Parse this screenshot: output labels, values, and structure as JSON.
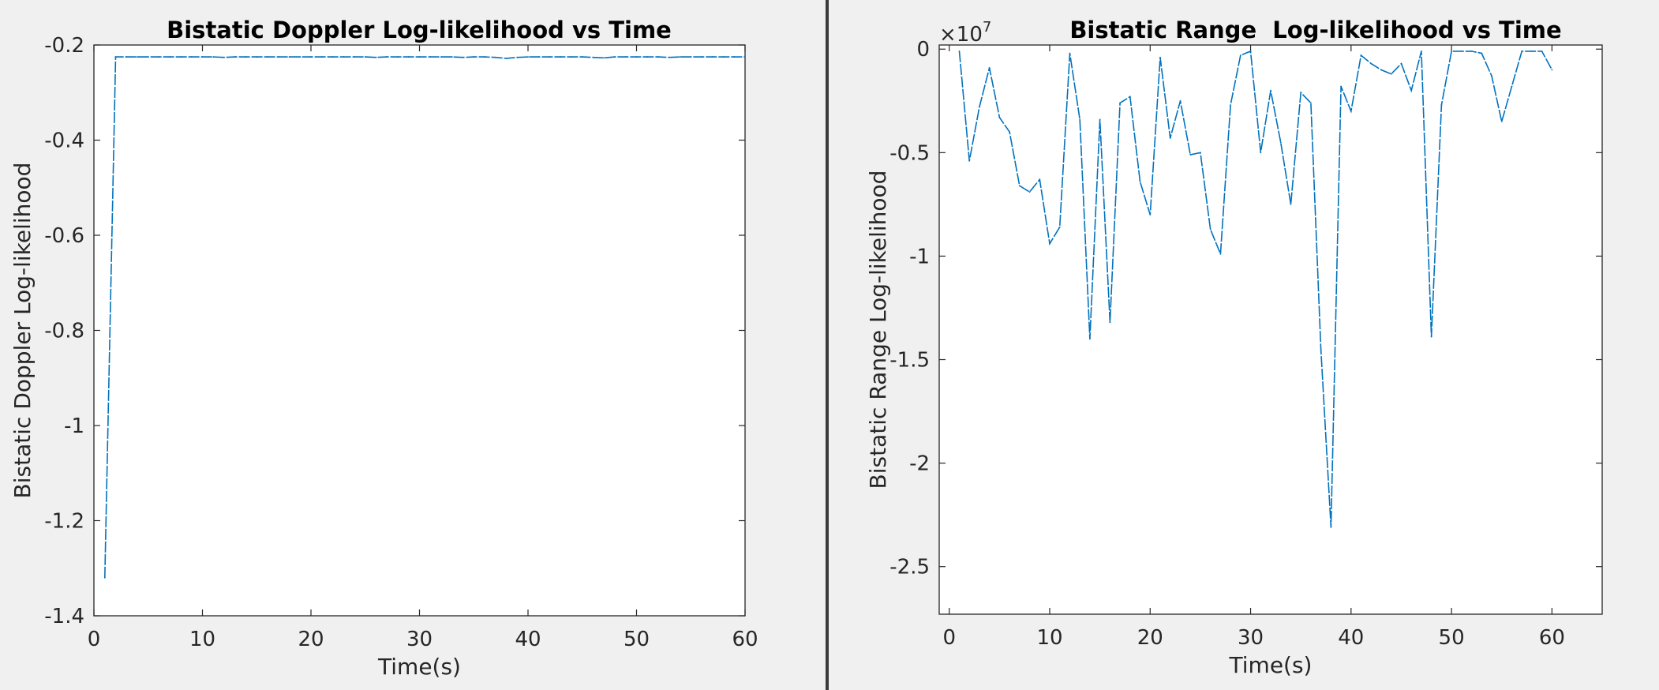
{
  "chart_data": [
    {
      "type": "line",
      "title": "Bistatic Doppler Log-likelihood vs Time",
      "xlabel": "Time(s)",
      "ylabel": "Bistatic Doppler Log-likelihood",
      "xlim": [
        0,
        60
      ],
      "ylim": [
        -1.4,
        -0.2
      ],
      "xticks": [
        0,
        10,
        20,
        30,
        40,
        50,
        60
      ],
      "xtick_labels": [
        "0",
        "10",
        "20",
        "30",
        "40",
        "50",
        "60"
      ],
      "yticks": [
        -1.4,
        -1.2,
        -1.0,
        -0.8,
        -0.6,
        -0.4,
        -0.2
      ],
      "ytick_labels": [
        "-1.4",
        "-1.2",
        "-1",
        "-0.8",
        "-0.6",
        "-0.4",
        "-0.2"
      ],
      "color": "#0072bd",
      "series": [
        {
          "x": [
            1,
            2,
            3,
            4,
            5,
            6,
            7,
            8,
            9,
            10,
            11,
            12,
            13,
            14,
            15,
            16,
            17,
            18,
            19,
            20,
            21,
            22,
            23,
            24,
            25,
            26,
            27,
            28,
            29,
            30,
            31,
            32,
            33,
            34,
            35,
            36,
            37,
            38,
            39,
            40,
            41,
            42,
            43,
            44,
            45,
            46,
            47,
            48,
            49,
            50,
            51,
            52,
            53,
            54,
            55,
            56,
            57,
            58,
            59,
            60
          ],
          "values": [
            -1.32,
            -0.225,
            -0.225,
            -0.225,
            -0.225,
            -0.225,
            -0.225,
            -0.225,
            -0.225,
            -0.225,
            -0.225,
            -0.226,
            -0.225,
            -0.225,
            -0.225,
            -0.225,
            -0.225,
            -0.225,
            -0.225,
            -0.225,
            -0.225,
            -0.225,
            -0.225,
            -0.225,
            -0.225,
            -0.226,
            -0.225,
            -0.225,
            -0.225,
            -0.225,
            -0.225,
            -0.225,
            -0.225,
            -0.226,
            -0.225,
            -0.225,
            -0.226,
            -0.228,
            -0.226,
            -0.225,
            -0.225,
            -0.225,
            -0.225,
            -0.225,
            -0.225,
            -0.226,
            -0.227,
            -0.225,
            -0.225,
            -0.225,
            -0.225,
            -0.225,
            -0.226,
            -0.225,
            -0.225,
            -0.225,
            -0.225,
            -0.225,
            -0.225,
            -0.225
          ]
        }
      ]
    },
    {
      "type": "line",
      "title": "Bistatic Range  Log-likelihood vs Time",
      "xlabel": "Time(s)",
      "ylabel": "Bistatic Range Log-likelihood",
      "y_exponent": "10",
      "y_exponent_power": "7",
      "y_exponent_prefix": "×",
      "xlim": [
        -1,
        65
      ],
      "ylim": [
        -2.73,
        0.02
      ],
      "xticks": [
        0,
        10,
        20,
        30,
        40,
        50,
        60
      ],
      "xtick_labels": [
        "0",
        "10",
        "20",
        "30",
        "40",
        "50",
        "60"
      ],
      "yticks": [
        -2.5,
        -2.0,
        -1.5,
        -1.0,
        -0.5,
        0
      ],
      "ytick_labels": [
        "-2.5",
        "-2",
        "-1.5",
        "-1",
        "-0.5",
        "0"
      ],
      "color": "#0072bd",
      "series": [
        {
          "x": [
            1,
            2,
            3,
            4,
            5,
            6,
            7,
            8,
            9,
            10,
            11,
            12,
            13,
            14,
            15,
            16,
            17,
            18,
            19,
            20,
            21,
            22,
            23,
            24,
            25,
            26,
            27,
            28,
            29,
            30,
            31,
            32,
            33,
            34,
            35,
            36,
            37,
            38,
            39,
            40,
            41,
            42,
            43,
            44,
            45,
            46,
            47,
            48,
            49,
            50,
            51,
            52,
            53,
            54,
            55,
            56,
            57,
            58,
            59,
            60
          ],
          "values": [
            -0.01,
            -0.54,
            -0.28,
            -0.09,
            -0.33,
            -0.4,
            -0.66,
            -0.69,
            -0.63,
            -0.94,
            -0.86,
            -0.02,
            -0.34,
            -1.4,
            -0.34,
            -1.32,
            -0.26,
            -0.23,
            -0.64,
            -0.8,
            -0.04,
            -0.43,
            -0.25,
            -0.51,
            -0.5,
            -0.87,
            -0.99,
            -0.27,
            -0.03,
            -0.01,
            -0.5,
            -0.2,
            -0.45,
            -0.75,
            -0.21,
            -0.26,
            -1.45,
            -2.31,
            -0.18,
            -0.3,
            -0.03,
            -0.07,
            -0.1,
            -0.12,
            -0.07,
            -0.2,
            -0.01,
            -1.39,
            -0.27,
            -0.01,
            -0.01,
            -0.01,
            -0.02,
            -0.13,
            -0.35,
            -0.18,
            -0.01,
            -0.01,
            -0.01,
            -0.1
          ]
        }
      ]
    }
  ]
}
